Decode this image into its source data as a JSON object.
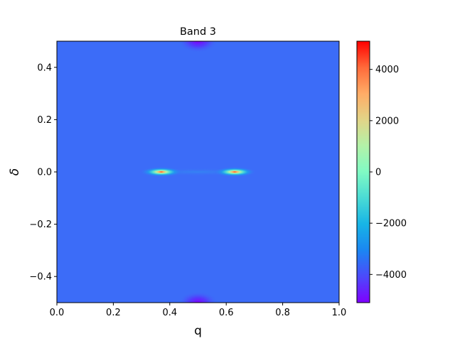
{
  "chart_data": {
    "type": "heatmap",
    "title": "Band 3",
    "xlabel": "q",
    "ylabel": "δ",
    "xlim": [
      0.0,
      1.0
    ],
    "ylim": [
      -0.5,
      0.5
    ],
    "x_ticks": [
      "0.0",
      "0.2",
      "0.4",
      "0.6",
      "0.8",
      "1.0"
    ],
    "y_ticks": [
      "−0.4",
      "−0.2",
      "0.0",
      "0.2",
      "0.4"
    ],
    "x_tick_values": [
      0.0,
      0.2,
      0.4,
      0.6,
      0.8,
      1.0
    ],
    "y_tick_values": [
      -0.4,
      -0.2,
      0.0,
      0.2,
      0.4
    ],
    "colormap": "rainbow",
    "background_value": -4100,
    "features": [
      {
        "kind": "peak",
        "x": 0.37,
        "y": 0.0,
        "value": 5100
      },
      {
        "kind": "peak",
        "x": 0.63,
        "y": 0.0,
        "value": 5100
      },
      {
        "kind": "dip",
        "x": 0.5,
        "y": 0.5,
        "value": -5100
      },
      {
        "kind": "dip",
        "x": 0.5,
        "y": -0.5,
        "value": -5100
      }
    ],
    "colorbar": {
      "range": [
        -5100,
        5100
      ],
      "ticks": [
        "−4000",
        "−2000",
        "0",
        "2000",
        "4000"
      ],
      "tick_values": [
        -4000,
        -2000,
        0,
        2000,
        4000
      ]
    }
  }
}
